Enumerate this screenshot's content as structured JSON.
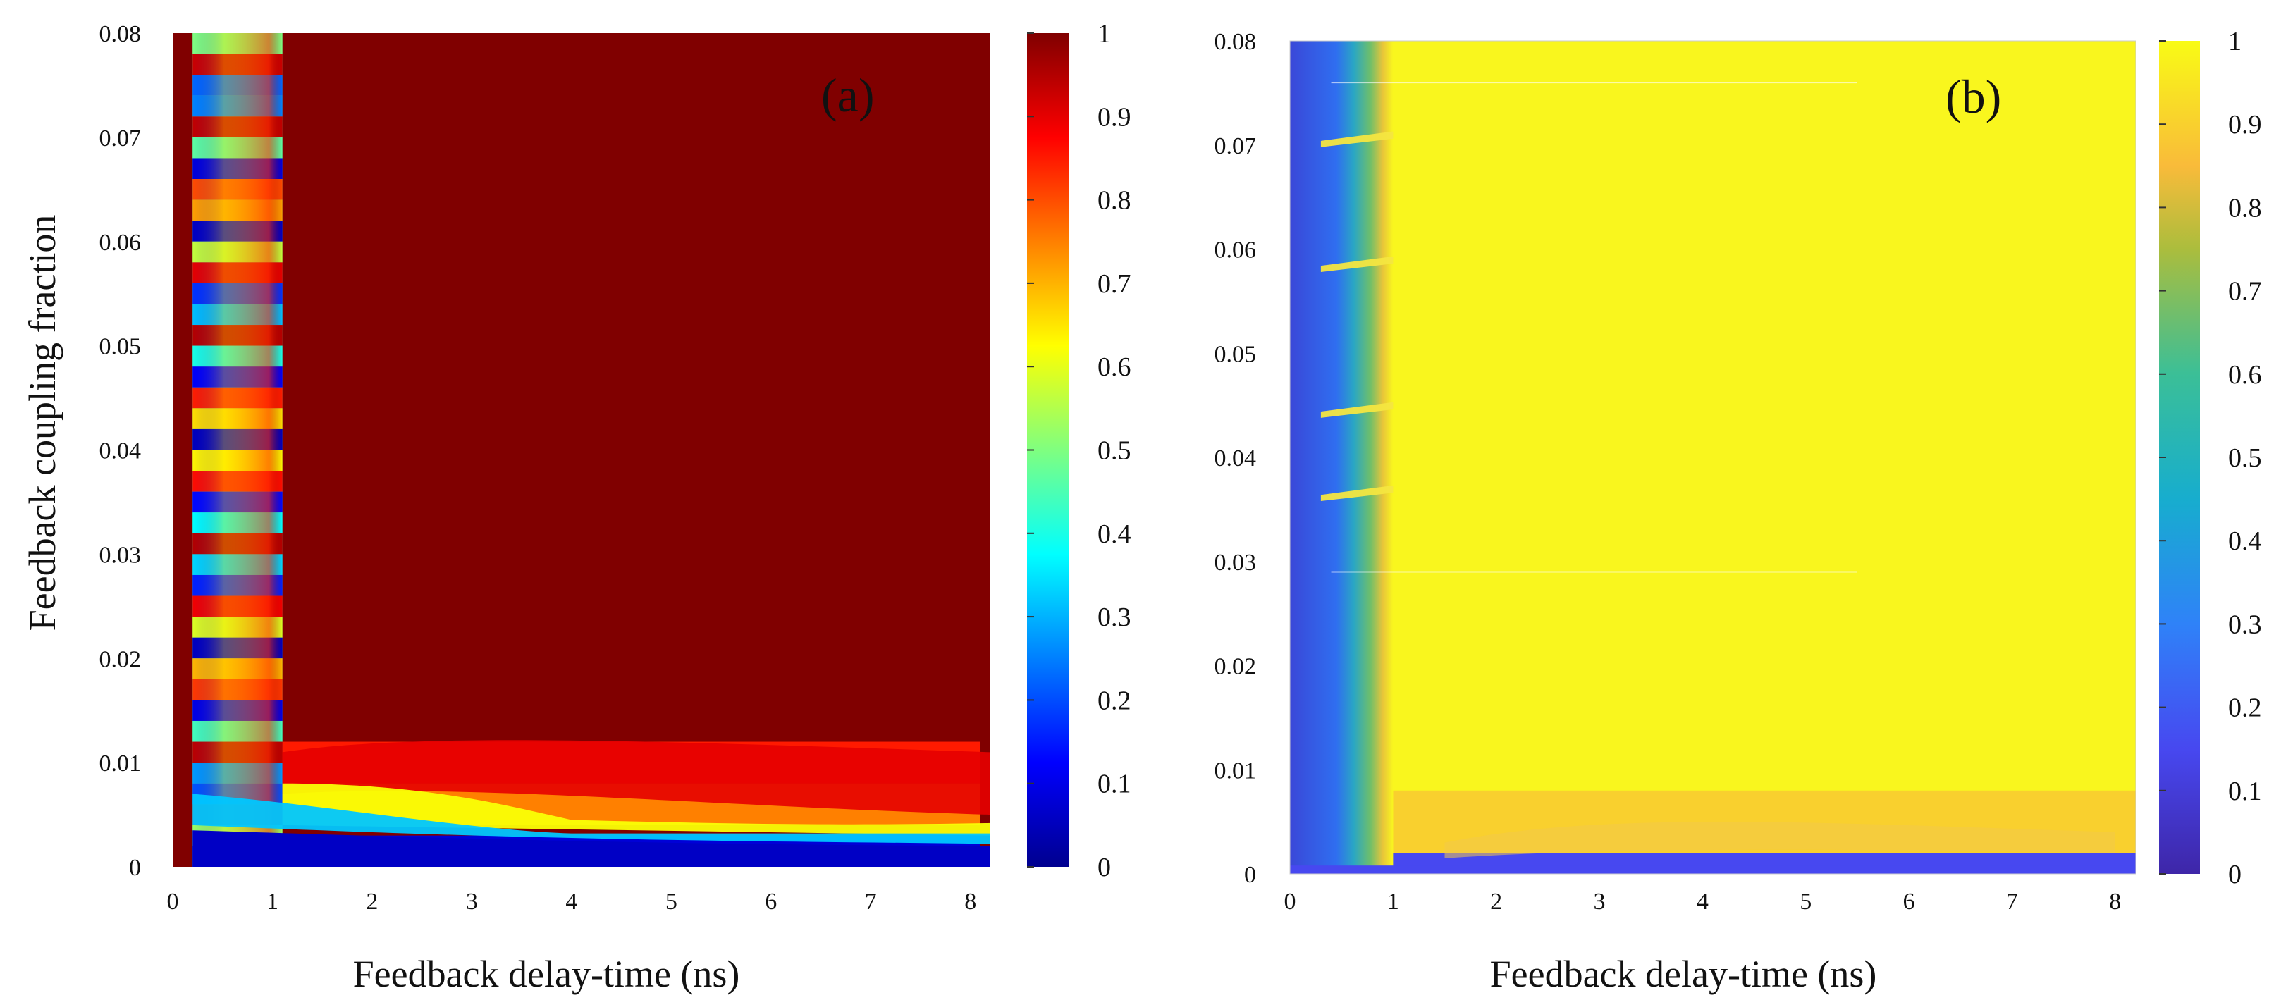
{
  "chart_data": [
    {
      "type": "heatmap",
      "panel_label": "(a)",
      "xlabel": "Feedback delay-time (ns)",
      "ylabel": "Feedback coupling fraction",
      "x_ticks": [
        "0",
        "1",
        "2",
        "3",
        "4",
        "5",
        "6",
        "7",
        "8"
      ],
      "y_ticks": [
        "0",
        "0.01",
        "0.02",
        "0.03",
        "0.04",
        "0.05",
        "0.06",
        "0.07",
        "0.08"
      ],
      "xlim": [
        0,
        8.2
      ],
      "ylim": [
        0,
        0.08
      ],
      "x_data_range": [
        0.2,
        8.1
      ],
      "colorbar": {
        "colormap": "jet",
        "range": [
          0,
          1
        ],
        "ticks": [
          "0",
          "0.1",
          "0.2",
          "0.3",
          "0.4",
          "0.5",
          "0.6",
          "0.7",
          "0.8",
          "0.9",
          "1"
        ]
      },
      "background_value": 1.0,
      "regions": [
        {
          "x": [
            0.2,
            1.1
          ],
          "y": [
            0.0,
            0.08
          ],
          "value": 0.45,
          "note": "strongly oscillating bands between ~0.05 and ~0.9"
        },
        {
          "x": [
            1.1,
            8.1
          ],
          "y": [
            0.008,
            0.012
          ],
          "value": 0.85
        },
        {
          "x": [
            1.1,
            8.1
          ],
          "y": [
            0.004,
            0.008
          ],
          "value": 0.75
        },
        {
          "x": [
            1.1,
            8.1
          ],
          "y": [
            0.0,
            0.003
          ],
          "value": 0.08
        }
      ]
    },
    {
      "type": "heatmap",
      "panel_label": "(b)",
      "xlabel": "Feedback delay-time (ns)",
      "ylabel": "",
      "x_ticks": [
        "0",
        "1",
        "2",
        "3",
        "4",
        "5",
        "6",
        "7",
        "8"
      ],
      "y_ticks": [
        "0",
        "0.01",
        "0.02",
        "0.03",
        "0.04",
        "0.05",
        "0.06",
        "0.07",
        "0.08"
      ],
      "xlim": [
        0,
        8.2
      ],
      "ylim": [
        0,
        0.08
      ],
      "x_data_range": [
        0.0,
        8.2
      ],
      "colorbar": {
        "colormap": "parula",
        "range": [
          0,
          1
        ],
        "ticks": [
          "0",
          "0.1",
          "0.2",
          "0.3",
          "0.4",
          "0.5",
          "0.6",
          "0.7",
          "0.8",
          "0.9",
          "1"
        ]
      },
      "background_value": 0.97,
      "regions": [
        {
          "x": [
            0.0,
            0.5
          ],
          "y": [
            0.0,
            0.08
          ],
          "value": 0.22
        },
        {
          "x": [
            0.5,
            0.9
          ],
          "y": [
            0.0,
            0.08
          ],
          "value": 0.65
        },
        {
          "x": [
            0.0,
            8.2
          ],
          "y": [
            0.0,
            0.002
          ],
          "value": 0.15
        },
        {
          "x": [
            1.0,
            8.2
          ],
          "y": [
            0.002,
            0.008
          ],
          "value": 0.9
        }
      ]
    }
  ]
}
